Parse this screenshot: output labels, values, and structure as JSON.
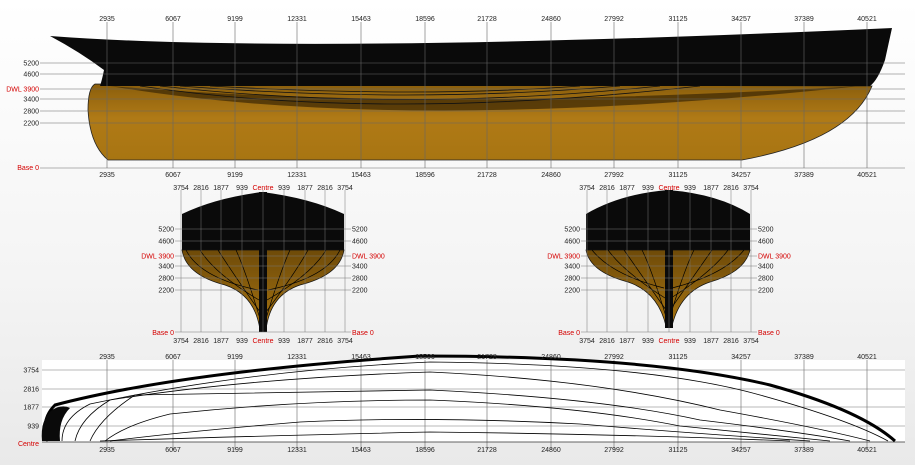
{
  "stations": [
    "2935",
    "6067",
    "9199",
    "12331",
    "15463",
    "18596",
    "21728",
    "24860",
    "27992",
    "31125",
    "34257",
    "37389",
    "40521"
  ],
  "profile": {
    "waterlines": [
      "5200",
      "4600",
      "DWL 3900",
      "3400",
      "2800",
      "2200"
    ],
    "base_label": "Base 0"
  },
  "body_plan": {
    "top_ticks": [
      "3754",
      "2816",
      "1877",
      "939",
      "Centre",
      "939",
      "1877",
      "2816",
      "3754"
    ],
    "bottom_ticks": [
      "3754",
      "2816",
      "1877",
      "939",
      "Centre",
      "939",
      "1877",
      "2816",
      "3754"
    ],
    "waterlines": [
      "5200",
      "4600",
      "DWL 3900",
      "3400",
      "2800",
      "2200"
    ],
    "base_label": "Base 0"
  },
  "half_breadth": {
    "offsets": [
      "3754",
      "2816",
      "1877",
      "939"
    ],
    "centre_label": "Centre"
  },
  "colors": {
    "hull_black": "#0a0a0a",
    "underwater": "#a87512",
    "label_red": "#d40000",
    "grid": "#555555"
  }
}
